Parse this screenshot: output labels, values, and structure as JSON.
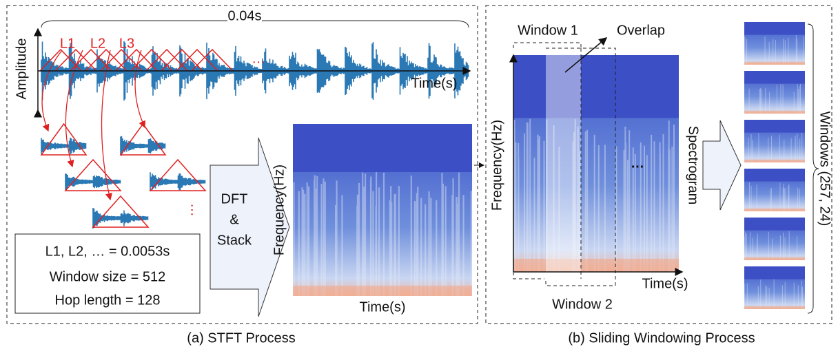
{
  "panel_a": {
    "caption": "(a) STFT Process",
    "waveform": {
      "duration": "0.04s",
      "y_label": "Amplitude",
      "x_label": "Time(s)",
      "frame_labels": [
        "L1",
        "L2",
        "L3"
      ]
    },
    "params": [
      "L1, L2, … = 0.0053s",
      "Window size = 512",
      "Hop length = 128"
    ],
    "arrow_label": [
      "DFT",
      "&",
      "Stack"
    ],
    "spectrogram": {
      "y_label": "Frequency(Hz)",
      "x_label": "Time(s)"
    }
  },
  "panel_b": {
    "caption": "(b) Sliding Windowing Process",
    "window_1": "Window 1",
    "overlap": "Overlap",
    "window_2": "Window 2",
    "spectrogram": {
      "y_label": "Frequency(Hz)",
      "x_label": "Time(s)"
    },
    "arrow_label": "Spectrogram",
    "stack_label": "Windows (257, 24)"
  }
}
